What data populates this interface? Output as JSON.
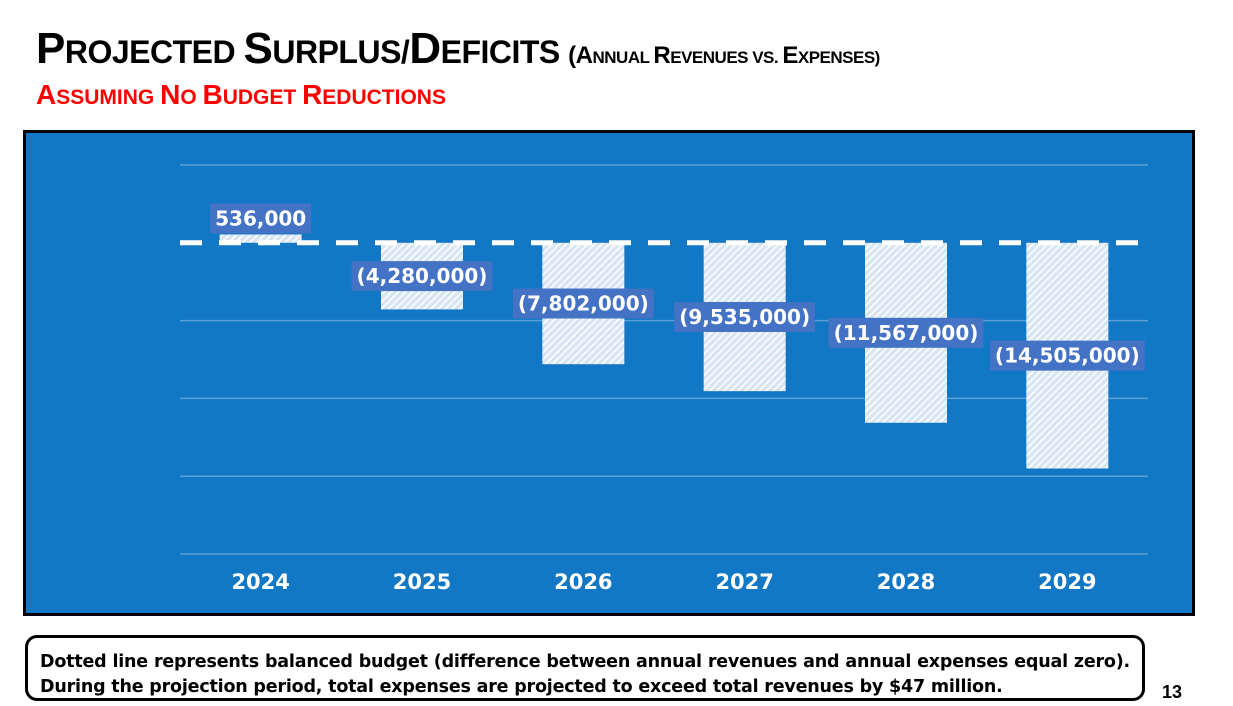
{
  "header": {
    "title_parts": [
      {
        "text": "P",
        "cls": "big"
      },
      {
        "text": "ROJECTED ",
        "cls": "sm"
      },
      {
        "text": "S",
        "cls": "big"
      },
      {
        "text": "URPLUS/",
        "cls": "sm"
      },
      {
        "text": "D",
        "cls": "big"
      },
      {
        "text": "EFICITS ",
        "cls": "sm"
      },
      {
        "text": "(A",
        "cls": "sub"
      },
      {
        "text": "NNUAL ",
        "cls": "subsm"
      },
      {
        "text": "R",
        "cls": "sub"
      },
      {
        "text": "EVENUES VS. ",
        "cls": "subsm"
      },
      {
        "text": "E",
        "cls": "sub"
      },
      {
        "text": "XPENSES)",
        "cls": "subsm"
      }
    ],
    "subtitle_parts": [
      {
        "text": "A",
        "cls": "big"
      },
      {
        "text": "SSUMING ",
        "cls": "sm"
      },
      {
        "text": "N",
        "cls": "big"
      },
      {
        "text": "O ",
        "cls": "sm"
      },
      {
        "text": "B",
        "cls": "big"
      },
      {
        "text": "UDGET ",
        "cls": "sm"
      },
      {
        "text": "R",
        "cls": "big"
      },
      {
        "text": "EDUCTIONS",
        "cls": "sm"
      }
    ]
  },
  "chart_data": {
    "type": "bar",
    "title": "Projected Surplus/Deficits (Annual Revenues vs. Expenses)",
    "subtitle": "Assuming No Budget Reductions",
    "categories": [
      "2024",
      "2025",
      "2026",
      "2027",
      "2028",
      "2029"
    ],
    "values": [
      536000,
      -4280000,
      -7802000,
      -9535000,
      -11567000,
      -14505000
    ],
    "data_labels": [
      "536,000",
      "(4,280,000)",
      "(7,802,000)",
      "(9,535,000)",
      "(11,567,000)",
      "(14,505,000)"
    ],
    "ylim": [
      -20000000,
      5000000
    ],
    "ytick_step": 5000000,
    "grid": true,
    "reference_line": {
      "value": 0,
      "style": "dashed"
    },
    "xlabel": "",
    "ylabel": "",
    "colors": {
      "background": "#1277c4",
      "bar": "#ffffff",
      "label_bg": "#4472c4",
      "grid": "#5a9fd8"
    }
  },
  "footer": {
    "note": "Dotted line represents balanced budget (difference between annual revenues and annual expenses equal zero).  During the projection period, total expenses are projected to exceed total revenues by $47 million.",
    "page_number": "13"
  }
}
